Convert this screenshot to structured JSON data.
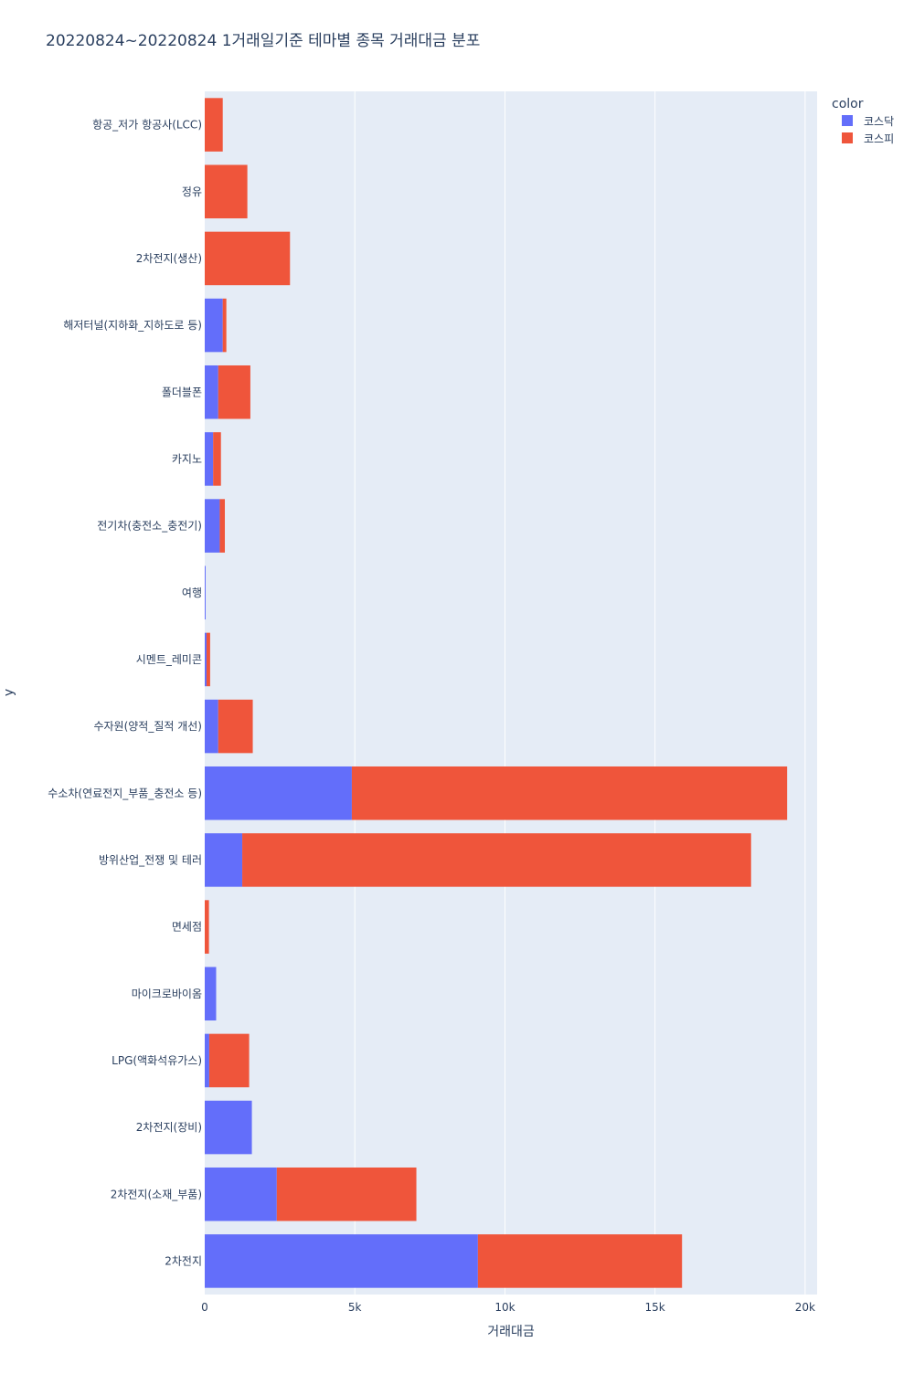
{
  "chart_data": {
    "type": "bar",
    "orientation": "horizontal",
    "barmode": "stack",
    "title": "20220824~20220824 1거래일기준 테마별 종목 거래대금 분포",
    "xlabel": "거래대금",
    "ylabel": "y",
    "xlim": [
      0,
      20400
    ],
    "xticks": [
      0,
      5000,
      10000,
      15000,
      20000
    ],
    "xtick_labels": [
      "0",
      "5k",
      "10k",
      "15k",
      "20k"
    ],
    "grid": true,
    "legend": {
      "title": "color",
      "position": "top-right"
    },
    "categories": [
      "항공_저가 항공사(LCC)",
      "정유",
      "2차전지(생산)",
      "해저터널(지하화_지하도로 등)",
      "폴더블폰",
      "카지노",
      "전기차(충전소_충전기)",
      "여행",
      "시멘트_레미콘",
      "수자원(양적_질적 개선)",
      "수소차(연료전지_부품_충전소 등)",
      "방위산업_전쟁 및 테러",
      "면세점",
      "마이크로바이옴",
      "LPG(액화석유가스)",
      "2차전지(장비)",
      "2차전지(소재_부품)",
      "2차전지"
    ],
    "series": [
      {
        "name": "코스닥",
        "color": "#636efa",
        "values": [
          0,
          0,
          0,
          600,
          450,
          280,
          500,
          30,
          60,
          450,
          4900,
          1250,
          0,
          380,
          150,
          1570,
          2400,
          9100
        ]
      },
      {
        "name": "코스피",
        "color": "#ef553b",
        "values": [
          600,
          1420,
          2840,
          120,
          1070,
          260,
          170,
          0,
          120,
          1150,
          14500,
          16950,
          140,
          0,
          1330,
          0,
          4650,
          6800
        ]
      }
    ]
  }
}
